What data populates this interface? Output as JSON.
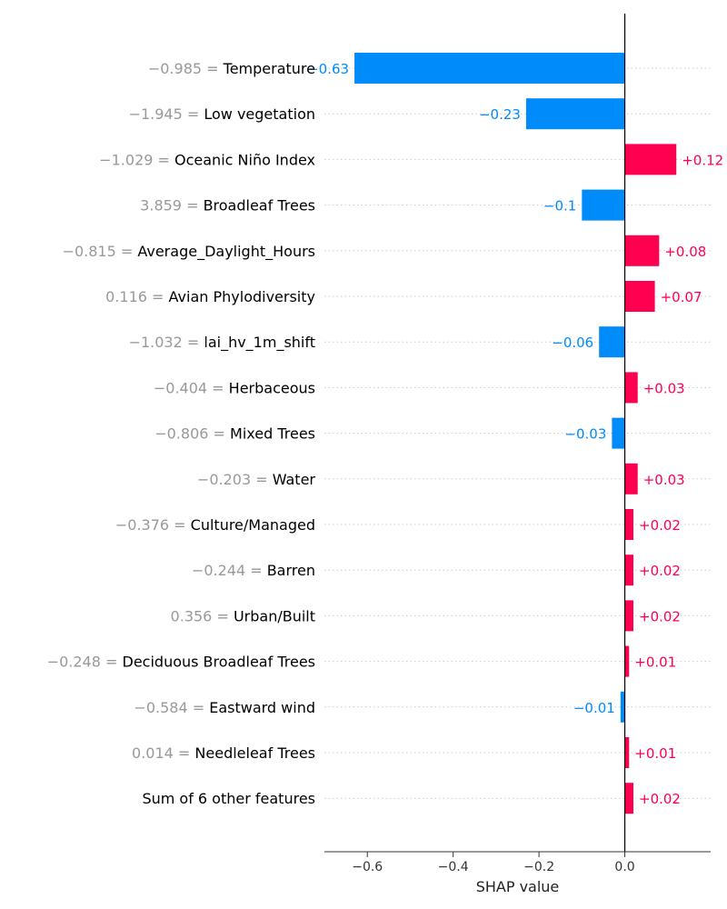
{
  "chart_data": {
    "type": "bar",
    "orientation": "horizontal",
    "chart_style": "shap-waterfall",
    "xlabel": "SHAP value",
    "xlim": [
      -0.7,
      0.2
    ],
    "xticks": [
      {
        "value": -0.6,
        "label": "−0.6"
      },
      {
        "value": -0.4,
        "label": "−0.4"
      },
      {
        "value": -0.2,
        "label": "−0.2"
      },
      {
        "value": 0.0,
        "label": "0.0"
      }
    ],
    "positive_color": "#ff0051",
    "negative_color": "#008bfb",
    "feature_value_color": "#999999",
    "rows": [
      {
        "feature_value": "−0.985 =",
        "feature": "Temperature",
        "shap": -0.63,
        "label": "−0.63"
      },
      {
        "feature_value": "−1.945 =",
        "feature": "Low vegetation",
        "shap": -0.23,
        "label": "−0.23"
      },
      {
        "feature_value": "−1.029 =",
        "feature": "Oceanic Niño Index",
        "shap": 0.12,
        "label": "+0.12"
      },
      {
        "feature_value": "3.859 =",
        "feature": "Broadleaf Trees",
        "shap": -0.1,
        "label": "−0.1"
      },
      {
        "feature_value": "−0.815 =",
        "feature": "Average_Daylight_Hours",
        "shap": 0.08,
        "label": "+0.08"
      },
      {
        "feature_value": "0.116 =",
        "feature": "Avian Phylodiversity",
        "shap": 0.07,
        "label": "+0.07"
      },
      {
        "feature_value": "−1.032 =",
        "feature": "lai_hv_1m_shift",
        "shap": -0.06,
        "label": "−0.06"
      },
      {
        "feature_value": "−0.404 =",
        "feature": "Herbaceous",
        "shap": 0.03,
        "label": "+0.03"
      },
      {
        "feature_value": "−0.806 =",
        "feature": "Mixed Trees",
        "shap": -0.03,
        "label": "−0.03"
      },
      {
        "feature_value": "−0.203 =",
        "feature": "Water",
        "shap": 0.03,
        "label": "+0.03"
      },
      {
        "feature_value": "−0.376 =",
        "feature": "Culture/Managed",
        "shap": 0.02,
        "label": "+0.02"
      },
      {
        "feature_value": "−0.244 =",
        "feature": "Barren",
        "shap": 0.02,
        "label": "+0.02"
      },
      {
        "feature_value": "0.356 =",
        "feature": "Urban/Built",
        "shap": 0.02,
        "label": "+0.02"
      },
      {
        "feature_value": "−0.248 =",
        "feature": "Deciduous Broadleaf Trees",
        "shap": 0.01,
        "label": "+0.01"
      },
      {
        "feature_value": "−0.584 =",
        "feature": "Eastward wind",
        "shap": -0.01,
        "label": "−0.01"
      },
      {
        "feature_value": "0.014 =",
        "feature": "Needleleaf Trees",
        "shap": 0.01,
        "label": "+0.01"
      },
      {
        "feature_value": "",
        "feature": "Sum of 6 other features",
        "shap": 0.02,
        "label": "+0.02"
      }
    ]
  }
}
